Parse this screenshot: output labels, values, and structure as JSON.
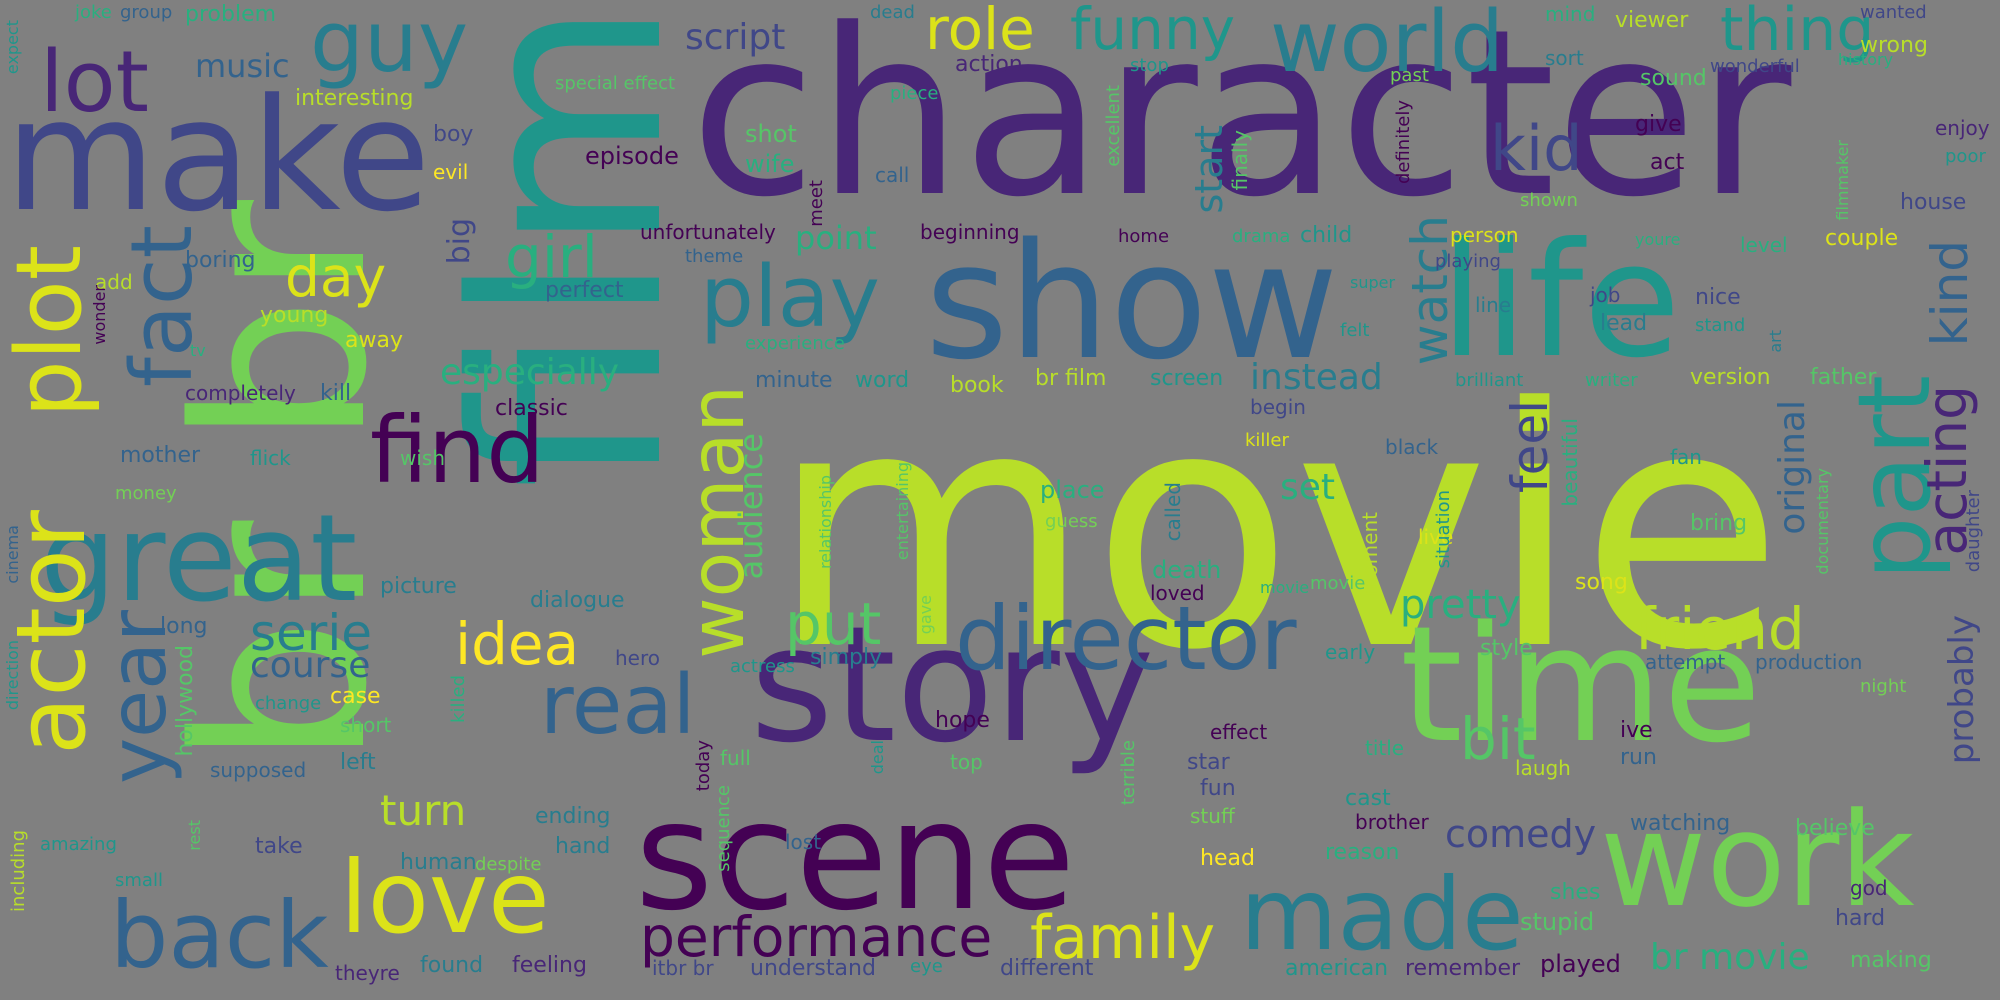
{
  "background": "#808080",
  "palette": [
    "#440154",
    "#482677",
    "#404788",
    "#33638d",
    "#287d8e",
    "#1f968b",
    "#29af7f",
    "#55c667",
    "#73d055",
    "#b8de29",
    "#dce319",
    "#fde725"
  ],
  "words": [
    {
      "text": "movie",
      "color": "#b8de29"
    },
    {
      "text": "film",
      "color": "#1f968b"
    },
    {
      "text": "character",
      "color": "#482677"
    },
    {
      "text": "br br",
      "color": "#73d055"
    },
    {
      "text": "show",
      "color": "#33638d"
    },
    {
      "text": "life",
      "color": "#1f968b"
    },
    {
      "text": "make",
      "color": "#404788"
    },
    {
      "text": "story",
      "color": "#482677"
    },
    {
      "text": "time",
      "color": "#73d055"
    },
    {
      "text": "scene",
      "color": "#440154"
    },
    {
      "text": "work",
      "color": "#73d055"
    },
    {
      "text": "great",
      "color": "#287d8e"
    },
    {
      "text": "plot",
      "color": "#dce319"
    },
    {
      "text": "actor",
      "color": "#dce319"
    },
    {
      "text": "love",
      "color": "#dce319"
    },
    {
      "text": "made",
      "color": "#287d8e"
    },
    {
      "text": "back",
      "color": "#33638d"
    },
    {
      "text": "part",
      "color": "#1f968b"
    },
    {
      "text": "director",
      "color": "#33638d"
    },
    {
      "text": "real",
      "color": "#33638d"
    },
    {
      "text": "world",
      "color": "#287d8e"
    },
    {
      "text": "guy",
      "color": "#287d8e"
    },
    {
      "text": "lot",
      "color": "#482677"
    },
    {
      "text": "find",
      "color": "#440154"
    },
    {
      "text": "play",
      "color": "#287d8e"
    },
    {
      "text": "fact",
      "color": "#33638d"
    },
    {
      "text": "year",
      "color": "#33638d"
    },
    {
      "text": "woman",
      "color": "#b8de29"
    },
    {
      "text": "thing",
      "color": "#1f968b"
    },
    {
      "text": "funny",
      "color": "#1f968b"
    },
    {
      "text": "role",
      "color": "#dce319"
    },
    {
      "text": "kid",
      "color": "#404788"
    },
    {
      "text": "family",
      "color": "#dce319"
    },
    {
      "text": "performance",
      "color": "#440154"
    },
    {
      "text": "friend",
      "color": "#b8de29"
    },
    {
      "text": "acting",
      "color": "#482677"
    },
    {
      "text": "bit",
      "color": "#55c667"
    },
    {
      "text": "put",
      "color": "#55c667"
    },
    {
      "text": "idea",
      "color": "#fde725"
    },
    {
      "text": "day",
      "color": "#dce319"
    },
    {
      "text": "girl",
      "color": "#29af7f"
    },
    {
      "text": "serie",
      "color": "#287d8e"
    },
    {
      "text": "kind",
      "color": "#33638d"
    },
    {
      "text": "watch",
      "color": "#287d8e"
    },
    {
      "text": "feel",
      "color": "#404788"
    },
    {
      "text": "pretty",
      "color": "#29af7f"
    },
    {
      "text": "turn",
      "color": "#b8de29"
    },
    {
      "text": "comedy",
      "color": "#404788"
    },
    {
      "text": "especially",
      "color": "#29af7f"
    },
    {
      "text": "br movie",
      "color": "#29af7f"
    },
    {
      "text": "instead",
      "color": "#287d8e"
    },
    {
      "text": "start",
      "color": "#287d8e"
    },
    {
      "text": "original",
      "color": "#33638d"
    },
    {
      "text": "probably",
      "color": "#404788"
    },
    {
      "text": "course",
      "color": "#33638d"
    },
    {
      "text": "audience",
      "color": "#55c667"
    },
    {
      "text": "set",
      "color": "#29af7f"
    },
    {
      "text": "music",
      "color": "#33638d"
    },
    {
      "text": "script",
      "color": "#404788"
    },
    {
      "text": "point",
      "color": "#29af7f"
    },
    {
      "text": "big",
      "color": "#404788"
    },
    {
      "text": "wife",
      "color": "#29af7f"
    },
    {
      "text": "shot",
      "color": "#55c667"
    },
    {
      "text": "episode",
      "color": "#440154"
    },
    {
      "text": "action",
      "color": "#482677"
    },
    {
      "text": "interesting",
      "color": "#b8de29"
    },
    {
      "text": "problem",
      "color": "#29af7f"
    },
    {
      "text": "boy",
      "color": "#404788"
    },
    {
      "text": "evil",
      "color": "#fde725"
    },
    {
      "text": "boring",
      "color": "#33638d"
    },
    {
      "text": "young",
      "color": "#b8de29"
    },
    {
      "text": "away",
      "color": "#dce319"
    },
    {
      "text": "add",
      "color": "#b8de29"
    },
    {
      "text": "completely",
      "color": "#482677"
    },
    {
      "text": "kill",
      "color": "#33638d"
    },
    {
      "text": "classic",
      "color": "#440154"
    },
    {
      "text": "mother",
      "color": "#33638d"
    },
    {
      "text": "flick",
      "color": "#1f968b"
    },
    {
      "text": "wish",
      "color": "#55c667"
    },
    {
      "text": "money",
      "color": "#73d055"
    },
    {
      "text": "minute",
      "color": "#33638d"
    },
    {
      "text": "word",
      "color": "#1f968b"
    },
    {
      "text": "book",
      "color": "#b8de29"
    },
    {
      "text": "br film",
      "color": "#b8de29"
    },
    {
      "text": "screen",
      "color": "#1f968b"
    },
    {
      "text": "picture",
      "color": "#287d8e"
    },
    {
      "text": "dialogue",
      "color": "#287d8e"
    },
    {
      "text": "long",
      "color": "#33638d"
    },
    {
      "text": "hero",
      "color": "#404788"
    },
    {
      "text": "simply",
      "color": "#287d8e"
    },
    {
      "text": "case",
      "color": "#fde725"
    },
    {
      "text": "change",
      "color": "#1f968b"
    },
    {
      "text": "short",
      "color": "#55c667"
    },
    {
      "text": "hollywood",
      "color": "#55c667"
    },
    {
      "text": "supposed",
      "color": "#33638d"
    },
    {
      "text": "left",
      "color": "#287d8e"
    },
    {
      "text": "hope",
      "color": "#440154"
    },
    {
      "text": "ending",
      "color": "#287d8e"
    },
    {
      "text": "hand",
      "color": "#287d8e"
    },
    {
      "text": "human",
      "color": "#287d8e"
    },
    {
      "text": "take",
      "color": "#404788"
    },
    {
      "text": "amazing",
      "color": "#1f968b"
    },
    {
      "text": "small",
      "color": "#1f968b"
    },
    {
      "text": "including",
      "color": "#b8de29"
    },
    {
      "text": "despite",
      "color": "#73d055"
    },
    {
      "text": "found",
      "color": "#287d8e"
    },
    {
      "text": "feeling",
      "color": "#482677"
    },
    {
      "text": "itbr br",
      "color": "#404788"
    },
    {
      "text": "understand",
      "color": "#404788"
    },
    {
      "text": "eye",
      "color": "#1f968b"
    },
    {
      "text": "theyre",
      "color": "#482677"
    },
    {
      "text": "different",
      "color": "#404788"
    },
    {
      "text": "american",
      "color": "#1f968b"
    },
    {
      "text": "remember",
      "color": "#482677"
    },
    {
      "text": "played",
      "color": "#440154"
    },
    {
      "text": "making",
      "color": "#55c667"
    },
    {
      "text": "hard",
      "color": "#404788"
    },
    {
      "text": "god",
      "color": "#482677"
    },
    {
      "text": "stupid",
      "color": "#55c667"
    },
    {
      "text": "shes",
      "color": "#29af7f"
    },
    {
      "text": "believe",
      "color": "#55c667"
    },
    {
      "text": "watching",
      "color": "#33638d"
    },
    {
      "text": "brother",
      "color": "#440154"
    },
    {
      "text": "head",
      "color": "#fde725"
    },
    {
      "text": "reason",
      "color": "#29af7f"
    },
    {
      "text": "cast",
      "color": "#1f968b"
    },
    {
      "text": "fun",
      "color": "#404788"
    },
    {
      "text": "stuff",
      "color": "#73d055"
    },
    {
      "text": "star",
      "color": "#404788"
    },
    {
      "text": "effect",
      "color": "#440154"
    },
    {
      "text": "title",
      "color": "#29af7f"
    },
    {
      "text": "laugh",
      "color": "#b8de29"
    },
    {
      "text": "run",
      "color": "#33638d"
    },
    {
      "text": "ive",
      "color": "#440154"
    },
    {
      "text": "top",
      "color": "#55c667"
    },
    {
      "text": "full",
      "color": "#55c667"
    },
    {
      "text": "today",
      "color": "#440154"
    },
    {
      "text": "lost",
      "color": "#33638d"
    },
    {
      "text": "sequence",
      "color": "#55c667"
    },
    {
      "text": "killed",
      "color": "#29af7f"
    },
    {
      "text": "terrible",
      "color": "#55c667"
    },
    {
      "text": "early",
      "color": "#1f968b"
    },
    {
      "text": "style",
      "color": "#55c667"
    },
    {
      "text": "attempt",
      "color": "#33638d"
    },
    {
      "text": "production",
      "color": "#33638d"
    },
    {
      "text": "night",
      "color": "#73d055"
    },
    {
      "text": "song",
      "color": "#dce319"
    },
    {
      "text": "death",
      "color": "#29af7f"
    },
    {
      "text": "loved",
      "color": "#440154"
    },
    {
      "text": "moment",
      "color": "#b8de29"
    },
    {
      "text": "movie",
      "color": "#55c667"
    },
    {
      "text": "bring",
      "color": "#55c667"
    },
    {
      "text": "live",
      "color": "#dce319"
    },
    {
      "text": "place",
      "color": "#29af7f"
    },
    {
      "text": "guess",
      "color": "#73d055"
    },
    {
      "text": "called",
      "color": "#287d8e"
    },
    {
      "text": "situation",
      "color": "#1f968b"
    },
    {
      "text": "beautiful",
      "color": "#29af7f"
    },
    {
      "text": "documentary",
      "color": "#55c667"
    },
    {
      "text": "daughter",
      "color": "#404788"
    },
    {
      "text": "black",
      "color": "#33638d"
    },
    {
      "text": "fan",
      "color": "#1f968b"
    },
    {
      "text": "begin",
      "color": "#404788"
    },
    {
      "text": "killer",
      "color": "#dce319"
    },
    {
      "text": "version",
      "color": "#b8de29"
    },
    {
      "text": "father",
      "color": "#55c667"
    },
    {
      "text": "brilliant",
      "color": "#1f968b"
    },
    {
      "text": "writer",
      "color": "#29af7f"
    },
    {
      "text": "lead",
      "color": "#287d8e"
    },
    {
      "text": "stand",
      "color": "#1f968b"
    },
    {
      "text": "nice",
      "color": "#404788"
    },
    {
      "text": "job",
      "color": "#404788"
    },
    {
      "text": "line",
      "color": "#287d8e"
    },
    {
      "text": "felt",
      "color": "#1f968b"
    },
    {
      "text": "playing",
      "color": "#404788"
    },
    {
      "text": "person",
      "color": "#dce319"
    },
    {
      "text": "couple",
      "color": "#dce319"
    },
    {
      "text": "level",
      "color": "#29af7f"
    },
    {
      "text": "youre",
      "color": "#29af7f"
    },
    {
      "text": "super",
      "color": "#1f968b"
    },
    {
      "text": "shown",
      "color": "#73d055"
    },
    {
      "text": "house",
      "color": "#404788"
    },
    {
      "text": "enjoy",
      "color": "#482677"
    },
    {
      "text": "poor",
      "color": "#1f968b"
    },
    {
      "text": "filmmaker",
      "color": "#55c667"
    },
    {
      "text": "give",
      "color": "#440154"
    },
    {
      "text": "act",
      "color": "#440154"
    },
    {
      "text": "call",
      "color": "#33638d"
    },
    {
      "text": "beginning",
      "color": "#440154"
    },
    {
      "text": "unfortunately",
      "color": "#440154"
    },
    {
      "text": "theme",
      "color": "#33638d"
    },
    {
      "text": "home",
      "color": "#440154"
    },
    {
      "text": "drama",
      "color": "#29af7f"
    },
    {
      "text": "child",
      "color": "#1f968b"
    },
    {
      "text": "finally",
      "color": "#55c667"
    },
    {
      "text": "excellent",
      "color": "#55c667"
    },
    {
      "text": "definitely",
      "color": "#440154"
    },
    {
      "text": "meet",
      "color": "#440154"
    },
    {
      "text": "perfect",
      "color": "#33638d"
    },
    {
      "text": "experience",
      "color": "#29af7f"
    },
    {
      "text": "relationship",
      "color": "#55c667"
    },
    {
      "text": "entertaining",
      "color": "#55c667"
    },
    {
      "text": "gave",
      "color": "#73d055"
    },
    {
      "text": "actress",
      "color": "#1f968b"
    },
    {
      "text": "deal",
      "color": "#1f968b"
    },
    {
      "text": "special effect",
      "color": "#55c667"
    },
    {
      "text": "piece",
      "color": "#29af7f"
    },
    {
      "text": "stop",
      "color": "#1f968b"
    },
    {
      "text": "dead",
      "color": "#287d8e"
    },
    {
      "text": "past",
      "color": "#73d055"
    },
    {
      "text": "mind",
      "color": "#29af7f"
    },
    {
      "text": "viewer",
      "color": "#b8de29"
    },
    {
      "text": "sort",
      "color": "#287d8e"
    },
    {
      "text": "sound",
      "color": "#55c667"
    },
    {
      "text": "wrong",
      "color": "#b8de29"
    },
    {
      "text": "wonderful",
      "color": "#404788"
    },
    {
      "text": "history",
      "color": "#29af7f"
    },
    {
      "text": "wanted",
      "color": "#404788"
    },
    {
      "text": "joke",
      "color": "#29af7f"
    },
    {
      "text": "group",
      "color": "#33638d"
    },
    {
      "text": "expect",
      "color": "#1f968b"
    },
    {
      "text": "tv",
      "color": "#29af7f"
    },
    {
      "text": "wonder",
      "color": "#440154"
    },
    {
      "text": "cinema",
      "color": "#33638d"
    },
    {
      "text": "direction",
      "color": "#1f968b"
    },
    {
      "text": "rest",
      "color": "#55c667"
    },
    {
      "text": "movie",
      "color": "#29af7f"
    },
    {
      "text": "art",
      "color": "#287d8e"
    }
  ]
}
